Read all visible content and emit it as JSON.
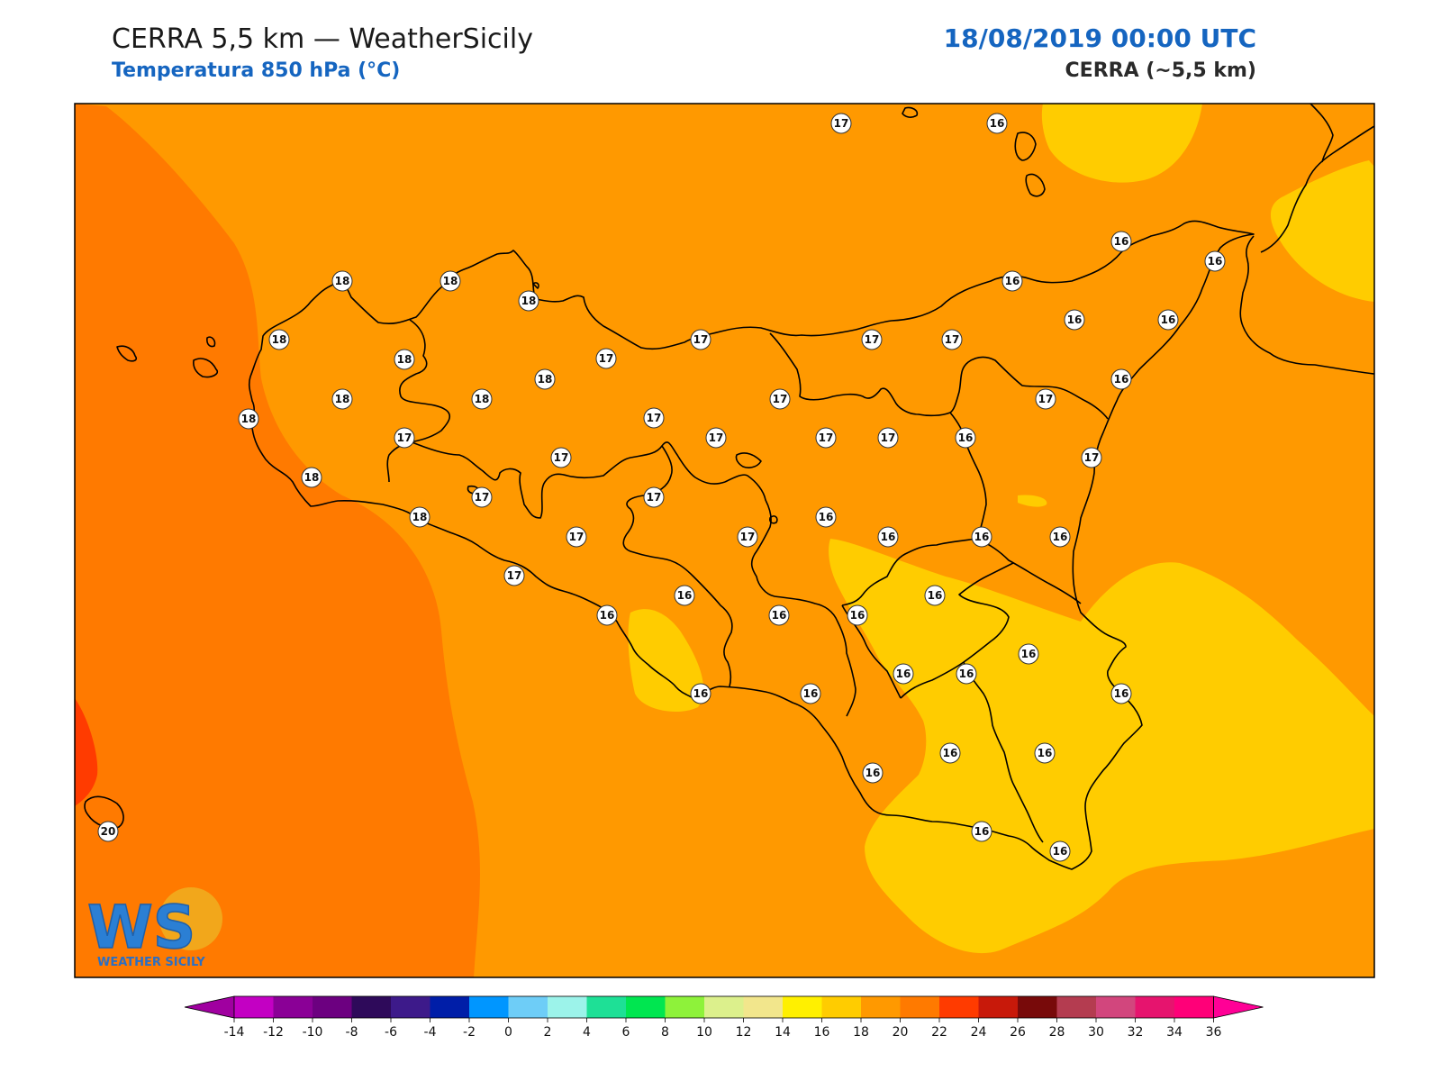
{
  "header": {
    "title": "CERRA 5,5 km — WeatherSicily",
    "subtitle": "Temperatura 850 hPa (°C)",
    "datetime": "18/08/2019 00:00 UTC",
    "model": "CERRA (~5,5 km)"
  },
  "colors": {
    "t14_16": "#ffcc00",
    "t16_18": "#ff9900",
    "t18_20": "#ff7a00",
    "t20_22": "#ff3b00",
    "coastline": "#000000"
  },
  "stations": [
    {
      "value": "17"
    },
    {
      "value": "16"
    },
    {
      "value": "16"
    },
    {
      "value": "16"
    },
    {
      "value": "18"
    },
    {
      "value": "18"
    },
    {
      "value": "18"
    },
    {
      "value": "16"
    },
    {
      "value": "18"
    },
    {
      "value": "17"
    },
    {
      "value": "17"
    },
    {
      "value": "17"
    },
    {
      "value": "16"
    },
    {
      "value": "16"
    },
    {
      "value": "18"
    },
    {
      "value": "18"
    },
    {
      "value": "17"
    },
    {
      "value": "18"
    },
    {
      "value": "18"
    },
    {
      "value": "17"
    },
    {
      "value": "17"
    },
    {
      "value": "16"
    },
    {
      "value": "18"
    },
    {
      "value": "17"
    },
    {
      "value": "17"
    },
    {
      "value": "17"
    },
    {
      "value": "17"
    },
    {
      "value": "16"
    },
    {
      "value": "18"
    },
    {
      "value": "17"
    },
    {
      "value": "17"
    },
    {
      "value": "17"
    },
    {
      "value": "17"
    },
    {
      "value": "17"
    },
    {
      "value": "18"
    },
    {
      "value": "17"
    },
    {
      "value": "17"
    },
    {
      "value": "16"
    },
    {
      "value": "16"
    },
    {
      "value": "16"
    },
    {
      "value": "16"
    },
    {
      "value": "17"
    },
    {
      "value": "16"
    },
    {
      "value": "16"
    },
    {
      "value": "16"
    },
    {
      "value": "16"
    },
    {
      "value": "16"
    },
    {
      "value": "16"
    },
    {
      "value": "16"
    },
    {
      "value": "16"
    },
    {
      "value": "16"
    },
    {
      "value": "16"
    },
    {
      "value": "16"
    },
    {
      "value": "16"
    },
    {
      "value": "16"
    },
    {
      "value": "16"
    },
    {
      "value": "16"
    },
    {
      "value": "16"
    },
    {
      "value": "20"
    }
  ],
  "colorbar": {
    "ticks": [
      "-14",
      "-12",
      "-10",
      "-8",
      "-6",
      "-4",
      "-2",
      "0",
      "2",
      "4",
      "6",
      "8",
      "10",
      "12",
      "14",
      "16",
      "18",
      "20",
      "22",
      "24",
      "26",
      "28",
      "30",
      "32",
      "34",
      "36"
    ],
    "colors": [
      "#c300c3",
      "#8a0096",
      "#6c0080",
      "#2e0a5a",
      "#3d1a8a",
      "#001ea8",
      "#0096ff",
      "#6ecdf7",
      "#9cf3ea",
      "#1ee096",
      "#00e650",
      "#8ef23a",
      "#dcf08c",
      "#f2e68c",
      "#fff000",
      "#ffcc00",
      "#ff9900",
      "#ff7a00",
      "#ff3b00",
      "#c8190a",
      "#780a0a",
      "#b43c50",
      "#d2467d",
      "#e6146e",
      "#ff0078"
    ],
    "under_color": "#a000a0",
    "over_color": "#ff0096"
  },
  "logo": {
    "mark": "WS",
    "name": "WEATHER SICILY"
  }
}
